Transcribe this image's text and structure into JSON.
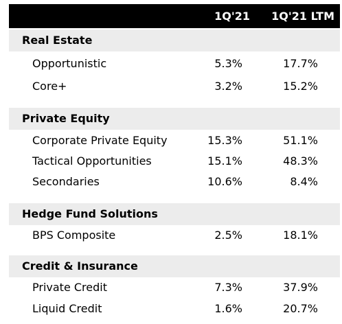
{
  "columns": {
    "q": "1Q'21",
    "ltm": "1Q'21 LTM"
  },
  "sections": [
    {
      "title": "Real Estate",
      "rows": [
        {
          "label": "Opportunistic",
          "q": "5.3%",
          "ltm": "17.7%"
        },
        {
          "label": "Core+",
          "q": "3.2%",
          "ltm": "15.2%"
        }
      ]
    },
    {
      "title": "Private Equity",
      "rows": [
        {
          "label": "Corporate Private Equity",
          "q": "15.3%",
          "ltm": "51.1%"
        },
        {
          "label": "Tactical Opportunities",
          "q": "15.1%",
          "ltm": "48.3%"
        },
        {
          "label": "Secondaries",
          "q": "10.6%",
          "ltm": "8.4%"
        }
      ]
    },
    {
      "title": "Hedge Fund Solutions",
      "rows": [
        {
          "label": "BPS Composite",
          "q": "2.5%",
          "ltm": "18.1%"
        }
      ]
    },
    {
      "title": "Credit & Insurance",
      "rows": [
        {
          "label": "Private Credit",
          "q": "7.3%",
          "ltm": "37.9%"
        },
        {
          "label": "Liquid Credit",
          "q": "1.6%",
          "ltm": "20.7%"
        }
      ]
    }
  ]
}
